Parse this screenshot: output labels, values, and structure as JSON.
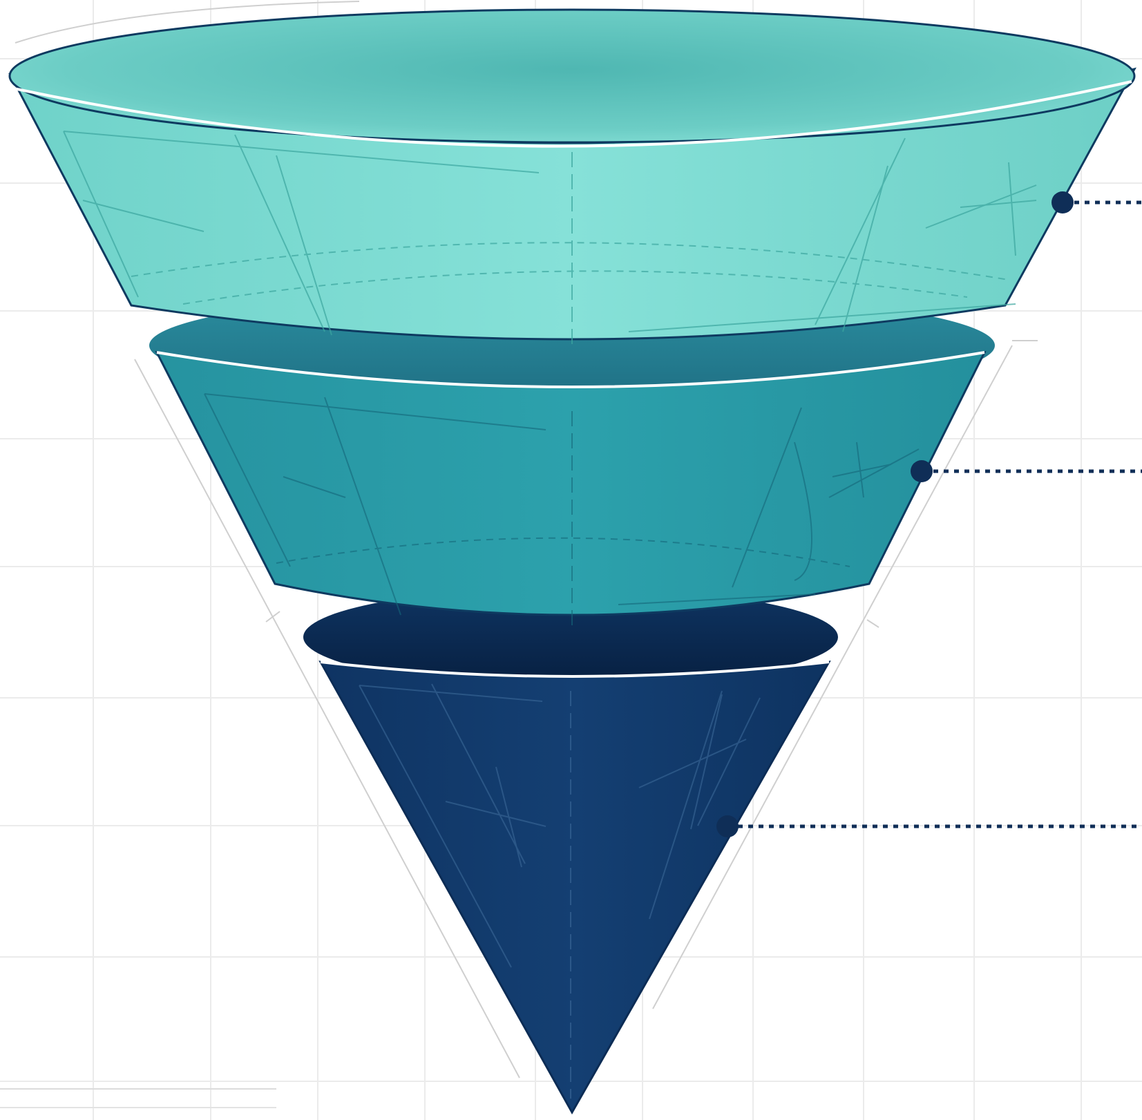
{
  "colors": {
    "background": "#ffffff",
    "grid": "#ebebeb",
    "tier_top": "#7fdbd2",
    "tier_top_inner": "#5cc4bd",
    "tier_middle": "#2a9aa6",
    "tier_middle_inner": "#247f8f",
    "tier_bottom": "#113a6b",
    "tier_bottom_inner": "#0a2a4f",
    "outline": "#0f3a66",
    "connector": "#0f2e57",
    "guide_line": "#c9c9c9"
  },
  "funnel": {
    "tiers": [
      {
        "name": "top-tier",
        "color_key": "tier_top"
      },
      {
        "name": "middle-tier",
        "color_key": "tier_middle"
      },
      {
        "name": "bottom-tier",
        "color_key": "tier_bottom"
      }
    ],
    "connectors": [
      {
        "name": "connector-top",
        "style": "dotted"
      },
      {
        "name": "connector-middle",
        "style": "dotted"
      },
      {
        "name": "connector-bottom",
        "style": "dotted"
      }
    ]
  }
}
